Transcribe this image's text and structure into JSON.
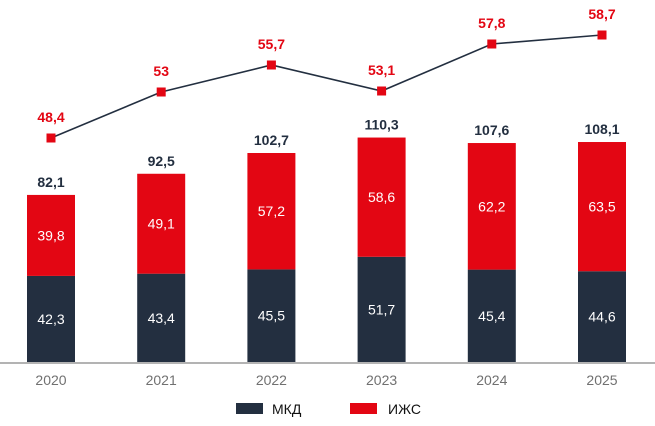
{
  "chart_data": {
    "type": "bar",
    "stacked": true,
    "categories": [
      "2020",
      "2021",
      "2022",
      "2023",
      "2024",
      "2025"
    ],
    "series": [
      {
        "name": "МКД",
        "values": [
          42.3,
          43.4,
          45.5,
          51.7,
          45.4,
          44.6
        ],
        "color": "#232f40",
        "value_labels": [
          "42,3",
          "43,4",
          "45,5",
          "51,7",
          "45,4",
          "44,6"
        ]
      },
      {
        "name": "ИЖС",
        "values": [
          39.8,
          49.1,
          57.2,
          58.6,
          62.2,
          63.5
        ],
        "color": "#e30613",
        "value_labels": [
          "39,8",
          "49,1",
          "57,2",
          "58,6",
          "62,2",
          "63,5"
        ]
      }
    ],
    "totals": [
      82.1,
      92.5,
      102.7,
      110.3,
      107.6,
      108.1
    ],
    "total_labels": [
      "82,1",
      "92,5",
      "102,7",
      "110,3",
      "107,6",
      "108,1"
    ],
    "line_series": {
      "values": [
        48.4,
        53,
        55.7,
        53.1,
        57.8,
        58.7
      ],
      "value_labels": [
        "48,4",
        "53",
        "55,7",
        "53,1",
        "57,8",
        "58,7"
      ],
      "line_color": "#232f40",
      "marker_color": "#e30613"
    },
    "legend": {
      "position": "bottom",
      "items": [
        "МКД",
        "ИЖС"
      ]
    },
    "title": "",
    "xlabel": "",
    "ylabel": "",
    "grid": false
  }
}
